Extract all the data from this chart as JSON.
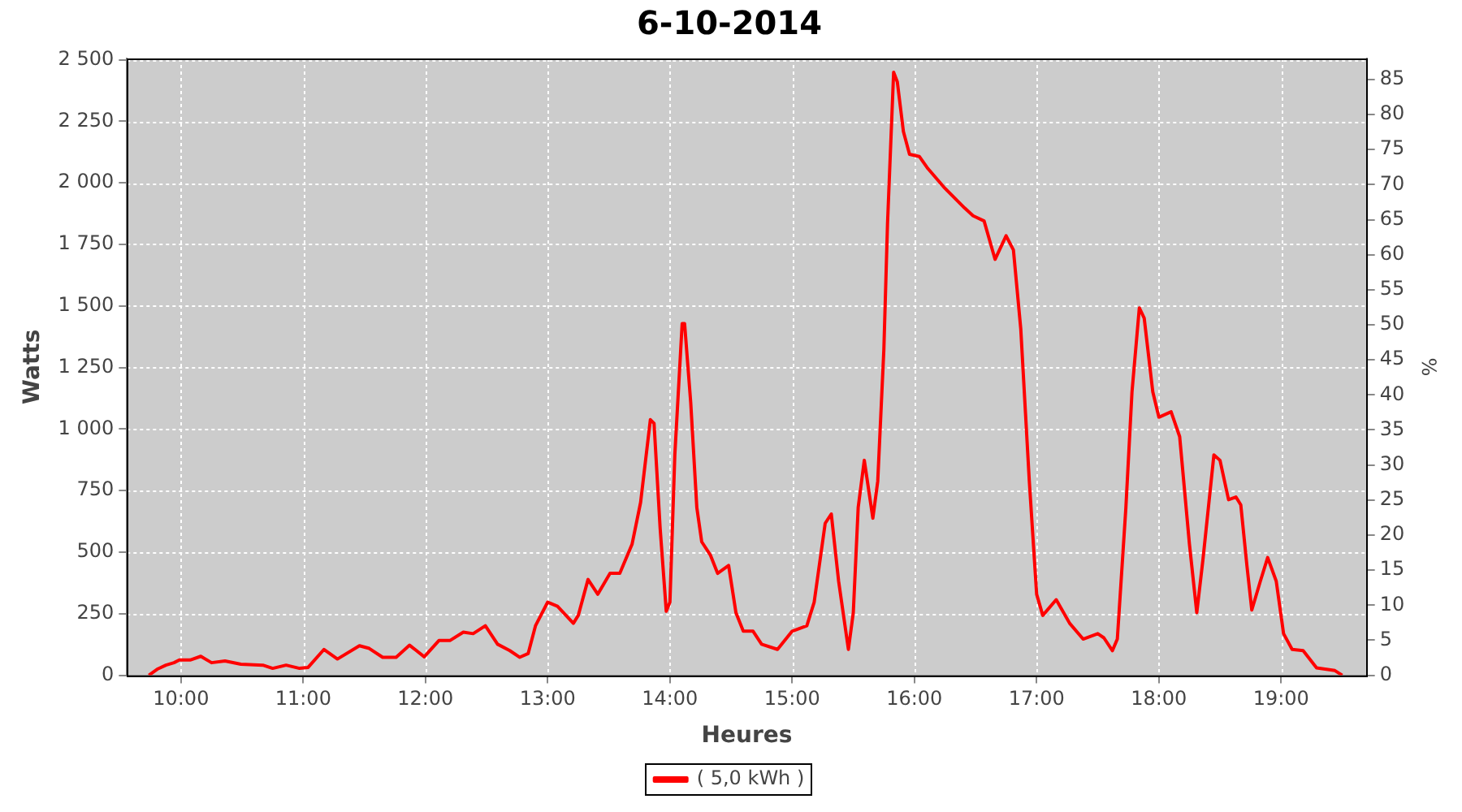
{
  "chart_data": {
    "type": "line",
    "title": "6-10-2014",
    "xlabel": "Heures",
    "ylabel": "Watts",
    "y2label": "%",
    "xlim": [
      9.558,
      19.7
    ],
    "xticks": [
      {
        "value": 10,
        "label": "10:00"
      },
      {
        "value": 11,
        "label": "11:00"
      },
      {
        "value": 12,
        "label": "12:00"
      },
      {
        "value": 13,
        "label": "13:00"
      },
      {
        "value": 14,
        "label": "14:00"
      },
      {
        "value": 15,
        "label": "15:00"
      },
      {
        "value": 16,
        "label": "16:00"
      },
      {
        "value": 17,
        "label": "17:00"
      },
      {
        "value": 18,
        "label": "18:00"
      },
      {
        "value": 19,
        "label": "19:00"
      }
    ],
    "ylim": [
      0,
      2505
    ],
    "yticks": [
      0,
      250,
      500,
      750,
      {
        "value": 1000,
        "label": "1 000"
      },
      {
        "value": 1250,
        "label": "1 250"
      },
      {
        "value": 1500,
        "label": "1 500"
      },
      {
        "value": 1750,
        "label": "1 750"
      },
      {
        "value": 2000,
        "label": "2 000"
      },
      {
        "value": 2250,
        "label": "2 250"
      },
      {
        "value": 2500,
        "label": "2 500"
      }
    ],
    "y2lim": [
      0,
      88
    ],
    "y2ticks": [
      0,
      5,
      10,
      15,
      20,
      25,
      30,
      35,
      40,
      45,
      50,
      55,
      60,
      65,
      70,
      75,
      80,
      85
    ],
    "grid": true,
    "legend": "bottom",
    "marker": "none",
    "line_style": "solid",
    "x": [
      9.737,
      9.811,
      9.877,
      9.943,
      9.987,
      10.075,
      10.162,
      10.25,
      10.36,
      10.49,
      10.67,
      10.75,
      10.86,
      10.97,
      11.04,
      11.17,
      11.28,
      11.46,
      11.54,
      11.65,
      11.76,
      11.87,
      11.99,
      12.11,
      12.2,
      12.31,
      12.39,
      12.49,
      12.59,
      12.69,
      12.77,
      12.84,
      12.9,
      13.0,
      13.08,
      13.21,
      13.25,
      13.33,
      13.41,
      13.51,
      13.59,
      13.69,
      13.76,
      13.84,
      13.87,
      13.92,
      13.97,
      14.0,
      14.04,
      14.1,
      14.12,
      14.17,
      14.22,
      14.26,
      14.33,
      14.39,
      14.48,
      14.54,
      14.6,
      14.68,
      14.75,
      14.88,
      15.0,
      15.12,
      15.18,
      15.27,
      15.32,
      15.38,
      15.46,
      15.5,
      15.54,
      15.59,
      15.66,
      15.7,
      15.75,
      15.78,
      15.83,
      15.86,
      15.91,
      15.96,
      16.04,
      16.11,
      16.24,
      16.41,
      16.48,
      16.57,
      16.66,
      16.75,
      16.81,
      16.87,
      16.94,
      17.0,
      17.05,
      17.16,
      17.27,
      17.38,
      17.5,
      17.55,
      17.62,
      17.66,
      17.73,
      17.78,
      17.84,
      17.88,
      17.95,
      18.0,
      18.1,
      18.17,
      18.25,
      18.31,
      18.36,
      18.45,
      18.5,
      18.57,
      18.63,
      18.67,
      18.72,
      18.76,
      18.83,
      18.89,
      18.96,
      19.02,
      19.09,
      19.18,
      19.29,
      19.44,
      19.5
    ],
    "series": [
      {
        "name": "( 5,0 kWh )",
        "color": "#ff0000",
        "values": [
          0,
          26,
          41,
          51,
          62,
          62,
          77,
          51,
          58,
          45,
          41,
          28,
          41,
          28,
          32,
          105,
          66,
          120,
          109,
          73,
          73,
          122,
          75,
          141,
          141,
          175,
          169,
          201,
          126,
          100,
          73,
          88,
          201,
          297,
          280,
          211,
          243,
          389,
          329,
          414,
          414,
          532,
          702,
          1038,
          1023,
          596,
          260,
          297,
          895,
          1428,
          1428,
          1108,
          681,
          542,
          489,
          414,
          446,
          254,
          179,
          179,
          126,
          105,
          179,
          201,
          297,
          617,
          655,
          382,
          105,
          254,
          681,
          873,
          638,
          788,
          1322,
          1834,
          2449,
          2410,
          2208,
          2116,
          2107,
          2058,
          1983,
          1898,
          1866,
          1845,
          1689,
          1785,
          1727,
          1407,
          788,
          329,
          243,
          307,
          211,
          147,
          169,
          152,
          100,
          147,
          681,
          1151,
          1492,
          1450,
          1151,
          1048,
          1070,
          969,
          532,
          254,
          468,
          895,
          873,
          713,
          724,
          692,
          446,
          265,
          382,
          478,
          382,
          169,
          105,
          100,
          30,
          19,
          0
        ]
      }
    ]
  }
}
